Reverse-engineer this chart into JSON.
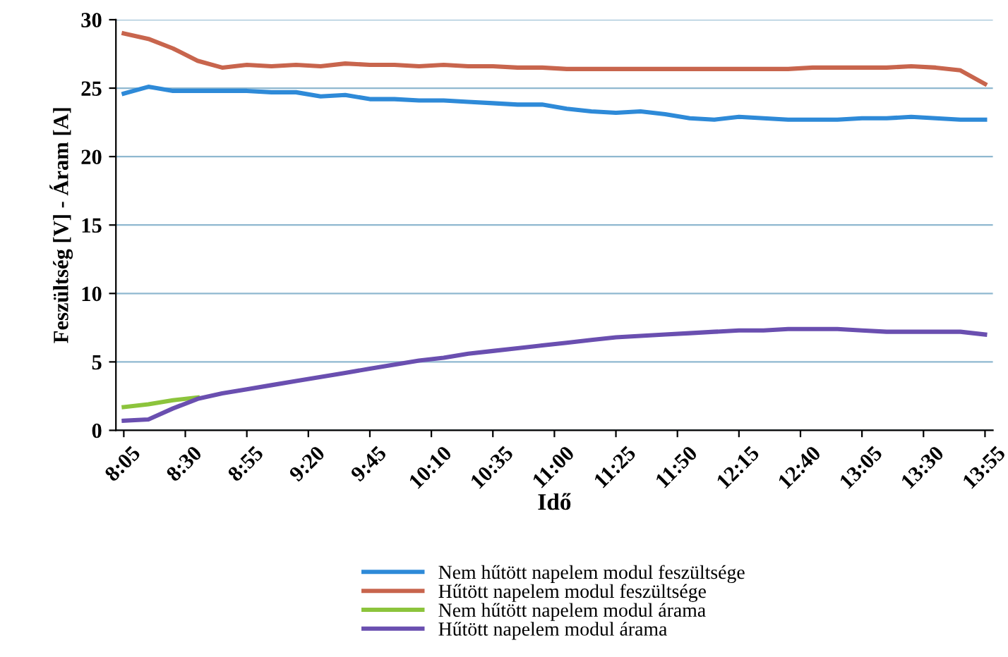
{
  "chart_data": {
    "type": "line",
    "xlabel": "Idő",
    "ylabel": "Feszültség [V] - Áram [A]",
    "x": [
      8.0833,
      8.25,
      8.4167,
      8.5833,
      8.75,
      8.9167,
      9.0833,
      9.25,
      9.4167,
      9.5833,
      9.75,
      9.9167,
      10.0833,
      10.25,
      10.4167,
      10.5833,
      10.75,
      10.9167,
      11.0833,
      11.25,
      11.4167,
      11.5833,
      11.75,
      11.9167,
      12.0833,
      12.25,
      12.4167,
      12.5833,
      12.75,
      12.9167,
      13.0833,
      13.25,
      13.4167,
      13.5833,
      13.75,
      13.9167
    ],
    "series": [
      {
        "name": "Nem hűtött napelem modul feszültsége",
        "color": "#2e8ad8",
        "values": [
          24.6,
          25.1,
          24.8,
          24.8,
          24.8,
          24.8,
          24.7,
          24.7,
          24.4,
          24.5,
          24.2,
          24.2,
          24.1,
          24.1,
          24.0,
          23.9,
          23.8,
          23.8,
          23.5,
          23.3,
          23.2,
          23.3,
          23.1,
          22.8,
          22.7,
          22.9,
          22.8,
          22.7,
          22.7,
          22.7,
          22.8,
          22.8,
          22.9,
          22.8,
          22.7,
          22.7
        ]
      },
      {
        "name": "Hűtött napelem modul feszültsége",
        "color": "#c8654d",
        "values": [
          29.0,
          28.6,
          27.9,
          27.0,
          26.5,
          26.7,
          26.6,
          26.7,
          26.6,
          26.8,
          26.7,
          26.7,
          26.6,
          26.7,
          26.6,
          26.6,
          26.5,
          26.5,
          26.4,
          26.4,
          26.4,
          26.4,
          26.4,
          26.4,
          26.4,
          26.4,
          26.4,
          26.4,
          26.5,
          26.5,
          26.5,
          26.5,
          26.6,
          26.5,
          26.3,
          25.3
        ]
      },
      {
        "name": "Nem hűtött napelem modul árama",
        "color": "#8cc43c",
        "values": [
          1.7,
          1.9,
          2.2,
          2.4,
          null,
          null,
          null,
          null,
          null,
          null,
          null,
          null,
          null,
          null,
          null,
          null,
          null,
          null,
          null,
          null,
          null,
          null,
          null,
          null,
          null,
          null,
          null,
          null,
          null,
          null,
          null,
          null,
          null,
          null,
          null,
          null
        ]
      },
      {
        "name": "Hűtött napelem modul árama",
        "color": "#6a4fb0",
        "values": [
          0.7,
          0.8,
          1.6,
          2.3,
          2.7,
          3.0,
          3.3,
          3.6,
          3.9,
          4.2,
          4.5,
          4.8,
          5.1,
          5.3,
          5.6,
          5.8,
          6.0,
          6.2,
          6.4,
          6.6,
          6.8,
          6.9,
          7.0,
          7.1,
          7.2,
          7.3,
          7.3,
          7.4,
          7.4,
          7.4,
          7.3,
          7.2,
          7.2,
          7.2,
          7.2,
          7.0
        ]
      }
    ],
    "xlim": [
      8.03,
      13.97
    ],
    "ylim": [
      0,
      30
    ],
    "yticks": [
      0,
      5,
      10,
      15,
      20,
      25,
      30
    ],
    "xticks": [
      {
        "value": 8.0833,
        "label": "8:05"
      },
      {
        "value": 8.5,
        "label": "8:30"
      },
      {
        "value": 8.9167,
        "label": "8:55"
      },
      {
        "value": 9.3333,
        "label": "9:20"
      },
      {
        "value": 9.75,
        "label": "9:45"
      },
      {
        "value": 10.1667,
        "label": "10:10"
      },
      {
        "value": 10.5833,
        "label": "10:35"
      },
      {
        "value": 11.0,
        "label": "11:00"
      },
      {
        "value": 11.4167,
        "label": "11:25"
      },
      {
        "value": 11.8333,
        "label": "11:50"
      },
      {
        "value": 12.25,
        "label": "12:15"
      },
      {
        "value": 12.6667,
        "label": "12:40"
      },
      {
        "value": 13.0833,
        "label": "13:05"
      },
      {
        "value": 13.5,
        "label": "13:30"
      },
      {
        "value": 13.9167,
        "label": "13:55"
      }
    ],
    "grid": "y",
    "legend": "bottom",
    "line_style": "solid",
    "marker": "none"
  }
}
